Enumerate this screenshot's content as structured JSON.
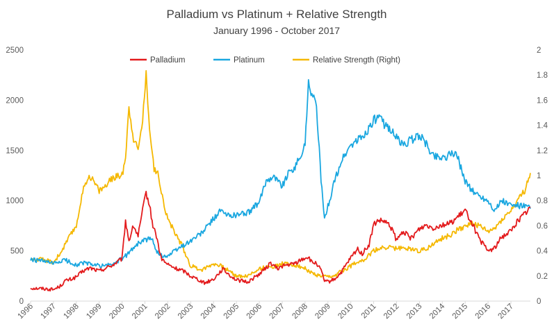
{
  "chart_data": {
    "type": "line",
    "title": "Palladium vs Platinum + Relative Strength",
    "subtitle": "January 1996 - October 2017",
    "xlabel": "",
    "ylabel": "",
    "x_ticks": [
      "1996",
      "1997",
      "1998",
      "1999",
      "2000",
      "2001",
      "2002",
      "2003",
      "2004",
      "2005",
      "2006",
      "2007",
      "2008",
      "2009",
      "2010",
      "2011",
      "2012",
      "2013",
      "2014",
      "2015",
      "2016",
      "2017"
    ],
    "xlim": [
      1996,
      2017.85
    ],
    "ylim_left": [
      0,
      2500
    ],
    "ylim_right": [
      0,
      2
    ],
    "y_ticks_left": [
      "0",
      "500",
      "1000",
      "1500",
      "2000",
      "2500"
    ],
    "y_ticks_right": [
      "0",
      "0.2",
      "0.4",
      "0.6",
      "0.8",
      "1",
      "1.2",
      "1.4",
      "1.6",
      "1.8",
      "2"
    ],
    "grid": false,
    "legend_position": "top",
    "series": [
      {
        "name": "Palladium",
        "axis": "left",
        "color": "#e31a1c",
        "x": [
          1996,
          1996.5,
          1997,
          1997.3,
          1997.5,
          1997.8,
          1998,
          1998.3,
          1998.6,
          1999,
          1999.3,
          1999.6,
          2000,
          2000.15,
          2000.3,
          2000.5,
          2000.7,
          2000.9,
          2001.05,
          2001.2,
          2001.35,
          2001.5,
          2001.7,
          2001.9,
          2002.1,
          2002.4,
          2002.7,
          2003,
          2003.3,
          2003.6,
          2004,
          2004.2,
          2004.4,
          2004.7,
          2005,
          2005.5,
          2006,
          2006.3,
          2006.5,
          2006.8,
          2007,
          2007.5,
          2008,
          2008.15,
          2008.3,
          2008.5,
          2008.7,
          2008.85,
          2009,
          2009.3,
          2009.6,
          2010,
          2010.3,
          2010.5,
          2010.8,
          2011,
          2011.2,
          2011.5,
          2011.8,
          2012,
          2012.3,
          2012.6,
          2013,
          2013.3,
          2013.6,
          2014,
          2014.3,
          2014.6,
          2015,
          2015.3,
          2015.6,
          2016,
          2016.3,
          2016.6,
          2017,
          2017.3,
          2017.6,
          2017.85
        ],
        "values": [
          130,
          125,
          115,
          150,
          200,
          220,
          240,
          300,
          330,
          300,
          330,
          360,
          420,
          800,
          600,
          750,
          650,
          900,
          1080,
          950,
          750,
          650,
          430,
          380,
          350,
          320,
          300,
          250,
          220,
          180,
          220,
          270,
          320,
          260,
          210,
          190,
          270,
          330,
          380,
          320,
          350,
          370,
          430,
          440,
          380,
          380,
          300,
          200,
          190,
          220,
          290,
          430,
          520,
          470,
          560,
          760,
          800,
          790,
          720,
          600,
          700,
          620,
          720,
          760,
          730,
          760,
          770,
          820,
          900,
          780,
          620,
          500,
          530,
          640,
          700,
          800,
          870,
          930
        ]
      },
      {
        "name": "Platinum",
        "axis": "left",
        "color": "#1aa7e0",
        "x": [
          1996,
          1996.5,
          1997,
          1997.5,
          1998,
          1998.3,
          1998.6,
          1999,
          1999.5,
          2000,
          2000.3,
          2000.6,
          2001,
          2001.3,
          2001.6,
          2002,
          2002.5,
          2003,
          2003.5,
          2004,
          2004.3,
          2004.6,
          2005,
          2005.5,
          2006,
          2006.3,
          2006.6,
          2007,
          2007.3,
          2007.6,
          2008,
          2008.15,
          2008.3,
          2008.5,
          2008.7,
          2008.85,
          2009,
          2009.3,
          2009.6,
          2010,
          2010.3,
          2010.6,
          2011,
          2011.2,
          2011.5,
          2011.8,
          2012,
          2012.3,
          2012.6,
          2013,
          2013.3,
          2013.6,
          2014,
          2014.3,
          2014.6,
          2015,
          2015.3,
          2015.6,
          2016,
          2016.3,
          2016.6,
          2017,
          2017.3,
          2017.6,
          2017.85
        ],
        "values": [
          410,
          400,
          370,
          410,
          360,
          380,
          370,
          350,
          360,
          420,
          480,
          560,
          610,
          620,
          460,
          450,
          530,
          600,
          680,
          820,
          900,
          850,
          860,
          880,
          980,
          1200,
          1250,
          1150,
          1280,
          1350,
          1550,
          2200,
          2050,
          1950,
          1200,
          800,
          950,
          1200,
          1400,
          1550,
          1600,
          1650,
          1800,
          1830,
          1750,
          1700,
          1620,
          1550,
          1600,
          1650,
          1560,
          1450,
          1430,
          1450,
          1480,
          1200,
          1100,
          1050,
          1000,
          900,
          1000,
          950,
          950,
          940,
          920
        ]
      },
      {
        "name": "Relative Strength (Right)",
        "axis": "right",
        "color": "#f5b800",
        "x": [
          1996,
          1996.5,
          1997,
          1997.3,
          1997.6,
          1998,
          1998.2,
          1998.4,
          1998.6,
          1999,
          1999.3,
          1999.6,
          1999.85,
          2000,
          2000.15,
          2000.3,
          2000.5,
          2000.7,
          2000.9,
          2001.05,
          2001.2,
          2001.4,
          2001.6,
          2001.8,
          2002,
          2002.3,
          2002.6,
          2003,
          2003.5,
          2004,
          2004.3,
          2004.6,
          2005,
          2005.5,
          2006,
          2006.5,
          2007,
          2007.5,
          2008,
          2008.3,
          2008.6,
          2009,
          2009.3,
          2009.6,
          2010,
          2010.3,
          2010.6,
          2011,
          2011.3,
          2011.6,
          2012,
          2012.3,
          2012.6,
          2013,
          2013.3,
          2013.6,
          2014,
          2014.3,
          2014.6,
          2015,
          2015.3,
          2015.6,
          2016,
          2016.3,
          2016.6,
          2017,
          2017.3,
          2017.6,
          2017.85
        ],
        "values": [
          0.33,
          0.33,
          0.31,
          0.38,
          0.48,
          0.6,
          0.8,
          0.95,
          1.0,
          0.88,
          0.92,
          0.98,
          1.0,
          1.0,
          1.15,
          1.55,
          1.3,
          1.2,
          1.45,
          1.8,
          1.4,
          1.05,
          1.0,
          0.8,
          0.65,
          0.55,
          0.45,
          0.28,
          0.25,
          0.3,
          0.28,
          0.25,
          0.2,
          0.2,
          0.26,
          0.27,
          0.3,
          0.29,
          0.26,
          0.22,
          0.2,
          0.19,
          0.2,
          0.24,
          0.28,
          0.32,
          0.33,
          0.4,
          0.42,
          0.43,
          0.42,
          0.42,
          0.42,
          0.4,
          0.42,
          0.45,
          0.5,
          0.52,
          0.56,
          0.6,
          0.62,
          0.6,
          0.55,
          0.58,
          0.65,
          0.72,
          0.8,
          0.88,
          1.02
        ]
      }
    ]
  }
}
